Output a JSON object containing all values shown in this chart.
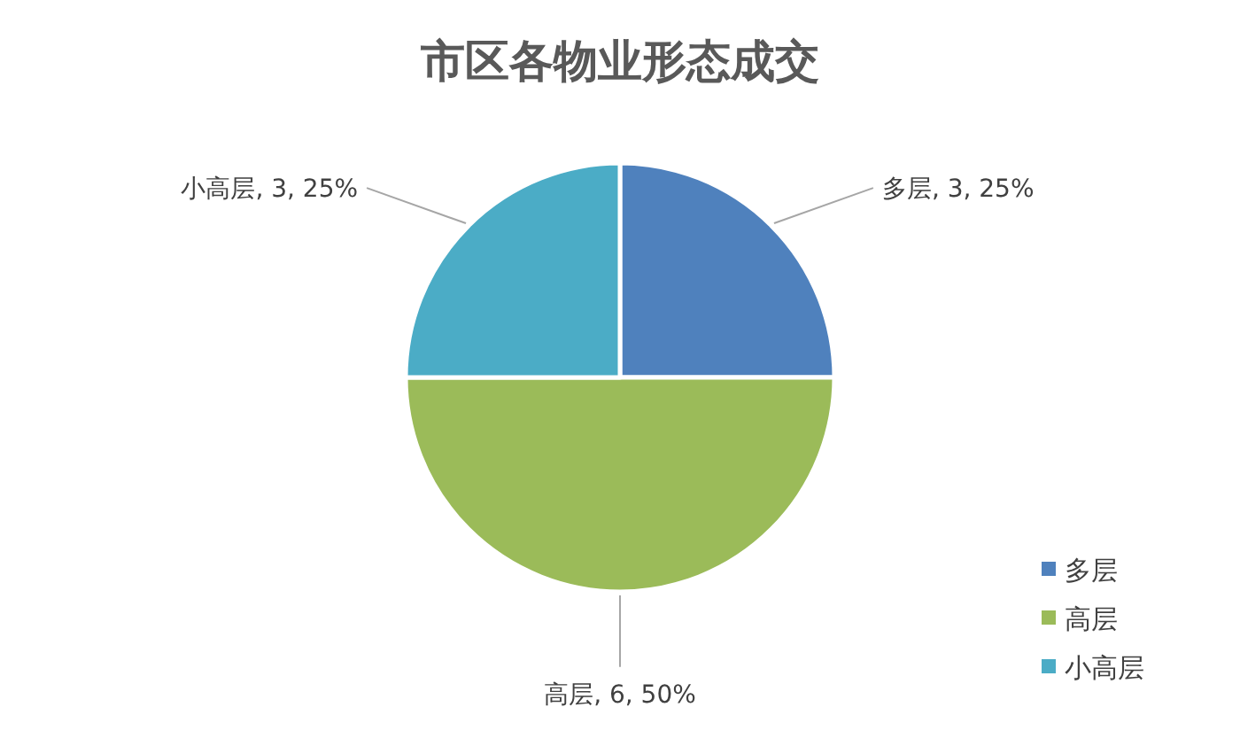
{
  "chart_data": {
    "type": "pie",
    "title": "市区各物业形态成交",
    "categories": [
      "多层",
      "高层",
      "小高层"
    ],
    "values": [
      3,
      6,
      3
    ],
    "colors": [
      "#4f81bd",
      "#9bbb59",
      "#4bacc6"
    ],
    "value_labels": [
      "多层, 3, 25%",
      "高层, 6, 50%",
      "小高层, 3, 25%"
    ],
    "legend": "bottom right"
  }
}
